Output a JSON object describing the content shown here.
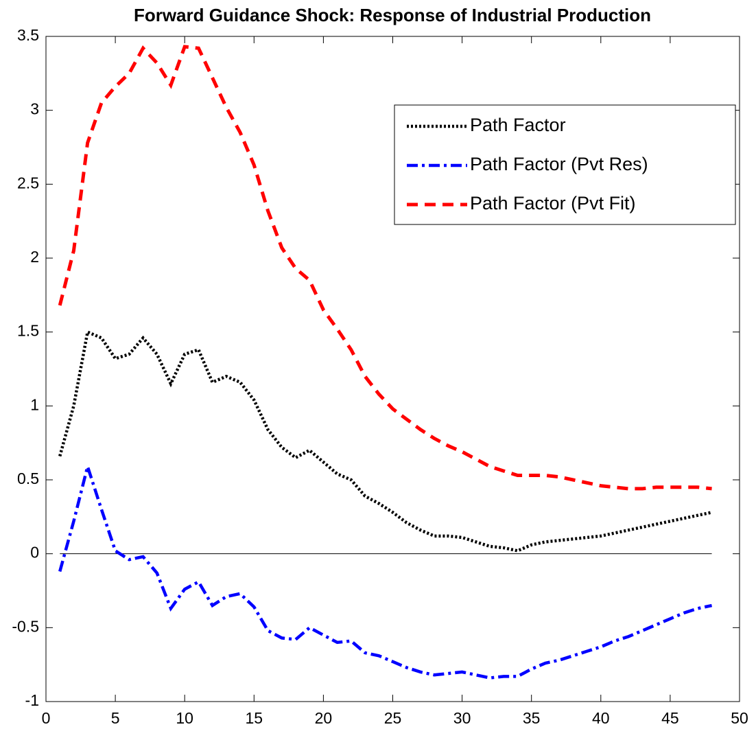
{
  "chart_data": {
    "type": "line",
    "title": "Forward Guidance Shock: Response of Industrial Production",
    "x": [
      1,
      2,
      3,
      4,
      5,
      6,
      7,
      8,
      9,
      10,
      11,
      12,
      13,
      14,
      15,
      16,
      17,
      18,
      19,
      20,
      21,
      22,
      23,
      24,
      25,
      26,
      27,
      28,
      29,
      30,
      31,
      32,
      33,
      34,
      35,
      36,
      37,
      38,
      39,
      40,
      41,
      42,
      43,
      44,
      45,
      46,
      47,
      48
    ],
    "series": [
      {
        "name": "Path Factor",
        "color": "#000000",
        "line_style": "dotted",
        "values": [
          0.66,
          1.0,
          1.5,
          1.46,
          1.32,
          1.35,
          1.46,
          1.35,
          1.15,
          1.35,
          1.38,
          1.16,
          1.2,
          1.16,
          1.04,
          0.84,
          0.72,
          0.65,
          0.7,
          0.62,
          0.54,
          0.5,
          0.39,
          0.34,
          0.28,
          0.21,
          0.16,
          0.12,
          0.12,
          0.11,
          0.08,
          0.05,
          0.04,
          0.02,
          0.06,
          0.08,
          0.09,
          0.1,
          0.11,
          0.12,
          0.14,
          0.16,
          0.18,
          0.2,
          0.22,
          0.24,
          0.26,
          0.28
        ]
      },
      {
        "name": "Path Factor (Pvt Res)",
        "color": "#0000ff",
        "line_style": "dashdot",
        "values": [
          -0.12,
          0.22,
          0.59,
          0.3,
          0.02,
          -0.04,
          -0.02,
          -0.13,
          -0.37,
          -0.24,
          -0.19,
          -0.35,
          -0.29,
          -0.27,
          -0.36,
          -0.52,
          -0.57,
          -0.58,
          -0.5,
          -0.55,
          -0.6,
          -0.59,
          -0.67,
          -0.69,
          -0.73,
          -0.77,
          -0.8,
          -0.82,
          -0.81,
          -0.8,
          -0.82,
          -0.84,
          -0.83,
          -0.83,
          -0.78,
          -0.74,
          -0.72,
          -0.69,
          -0.66,
          -0.63,
          -0.59,
          -0.56,
          -0.52,
          -0.48,
          -0.44,
          -0.4,
          -0.37,
          -0.35
        ]
      },
      {
        "name": "Path Factor (Pvt Fit)",
        "color": "#ff0000",
        "line_style": "dashed",
        "values": [
          1.68,
          2.05,
          2.78,
          3.05,
          3.16,
          3.25,
          3.42,
          3.32,
          3.17,
          3.43,
          3.42,
          3.22,
          3.02,
          2.85,
          2.63,
          2.32,
          2.07,
          1.93,
          1.85,
          1.65,
          1.52,
          1.38,
          1.2,
          1.08,
          0.98,
          0.91,
          0.84,
          0.78,
          0.73,
          0.69,
          0.64,
          0.59,
          0.56,
          0.53,
          0.53,
          0.53,
          0.52,
          0.5,
          0.48,
          0.46,
          0.45,
          0.44,
          0.44,
          0.45,
          0.45,
          0.45,
          0.45,
          0.44
        ]
      }
    ],
    "xlim": [
      0,
      50
    ],
    "xticks": [
      0,
      5,
      10,
      15,
      20,
      25,
      30,
      35,
      40,
      45,
      50
    ],
    "ylim": [
      -1,
      3.5
    ],
    "yticks": [
      -1,
      -0.5,
      0,
      0.5,
      1,
      1.5,
      2,
      2.5,
      3,
      3.5
    ],
    "legend": "upper right",
    "zero_line": true
  }
}
